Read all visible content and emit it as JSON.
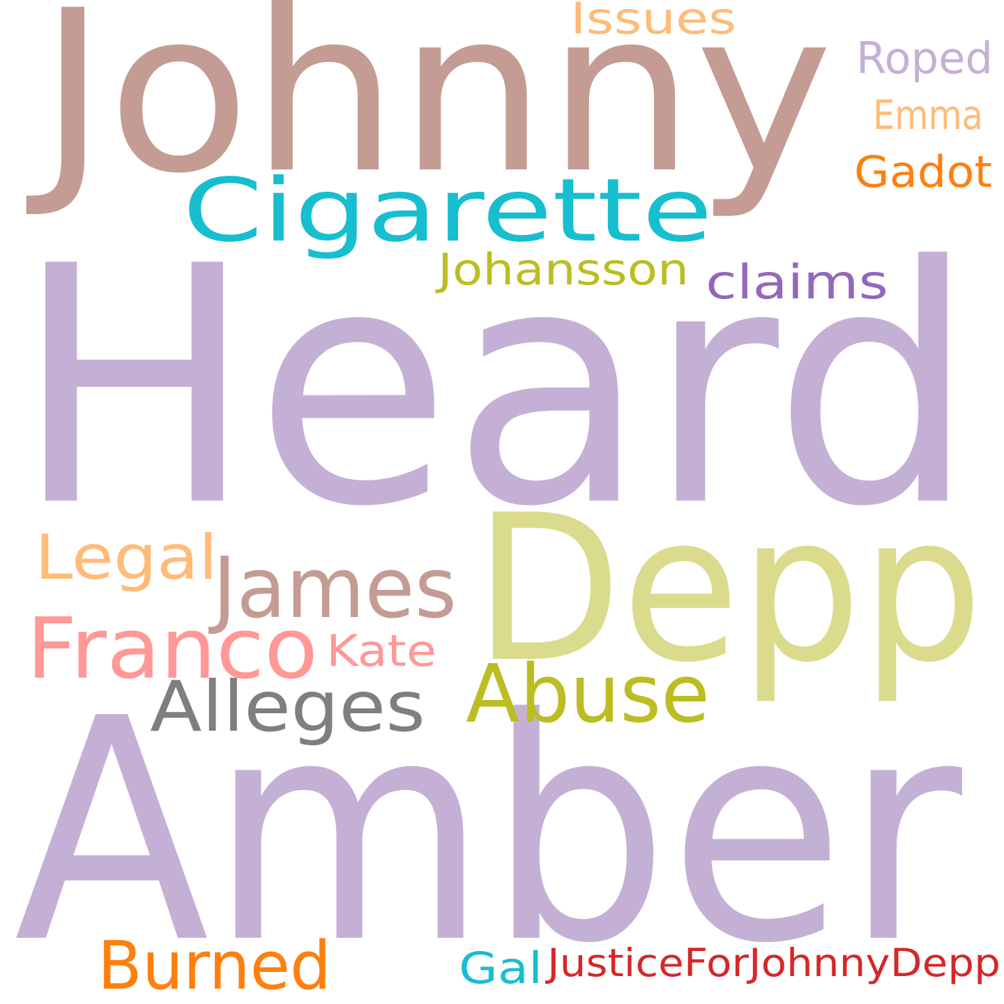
{
  "words": [
    {
      "id": "heard",
      "text": "Heard",
      "color": "#c5b0d5"
    },
    {
      "id": "amber",
      "text": "Amber",
      "color": "#c5b0d5"
    },
    {
      "id": "johnny",
      "text": "Johnny",
      "color": "#c49c94"
    },
    {
      "id": "depp",
      "text": "Depp",
      "color": "#dbdb8d"
    },
    {
      "id": "cigarette",
      "text": "Cigarette",
      "color": "#17becf"
    },
    {
      "id": "james",
      "text": "James",
      "color": "#c49c94"
    },
    {
      "id": "franco",
      "text": "Franco",
      "color": "#ff9896"
    },
    {
      "id": "abuse",
      "text": "Abuse",
      "color": "#bcbd22"
    },
    {
      "id": "alleges",
      "text": "Alleges",
      "color": "#7f7f7f"
    },
    {
      "id": "burned",
      "text": "Burned",
      "color": "#ff7f0e"
    },
    {
      "id": "legal",
      "text": "Legal",
      "color": "#ffbb78"
    },
    {
      "id": "johansson",
      "text": "Johansson",
      "color": "#bcbd22"
    },
    {
      "id": "claims",
      "text": "claims",
      "color": "#9467bd"
    },
    {
      "id": "issues",
      "text": "Issues",
      "color": "#ffbb78"
    },
    {
      "id": "roped",
      "text": "Roped",
      "color": "#c5b0d5"
    },
    {
      "id": "emma",
      "text": "Emma",
      "color": "#ffbb78"
    },
    {
      "id": "gadot",
      "text": "Gadot",
      "color": "#ff7f0e"
    },
    {
      "id": "kate",
      "text": "Kate",
      "color": "#ff9896"
    },
    {
      "id": "gal",
      "text": "Gal",
      "color": "#17becf"
    },
    {
      "id": "justice",
      "text": "JusticeForJohnnyDepp",
      "color": "#d62728"
    }
  ]
}
